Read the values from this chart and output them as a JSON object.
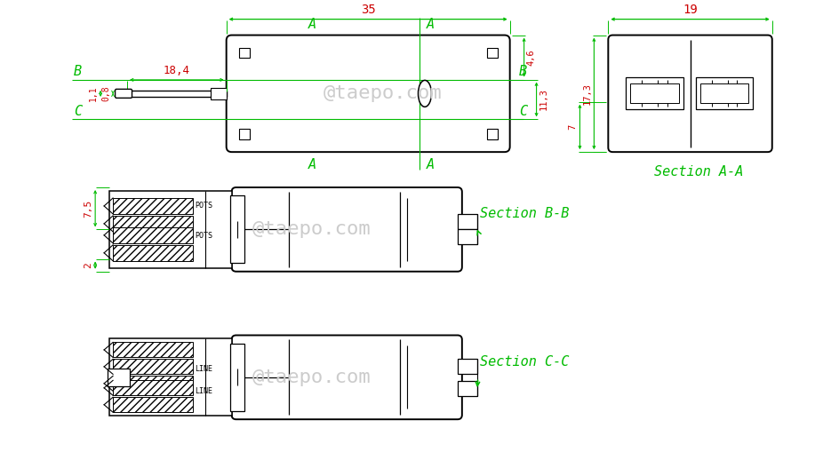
{
  "bg": "#ffffff",
  "lc": "#000000",
  "gc": "#00bb00",
  "rc": "#cc0000",
  "wm": "@taepo.com",
  "wmc": "#cccccc",
  "dims": {
    "d35": "35",
    "d19": "19",
    "d18p4": "18,4",
    "d0p8": "0,8",
    "d1p1": "1,1",
    "d4p6": "4,6",
    "d11p3": "11,3",
    "d17p3": "17,3",
    "d7": "7",
    "d7p5": "7,5",
    "d2": "2"
  },
  "sec_labels": {
    "A_top": "A",
    "A_bot": "A",
    "B_l": "B",
    "B_r": "B",
    "C_l": "C",
    "C_r": "C",
    "secAA": "Section A-A",
    "secBB": "Section B-B",
    "secCC": "Section C-C",
    "POTS": "POTS",
    "LINE": "LINE"
  }
}
